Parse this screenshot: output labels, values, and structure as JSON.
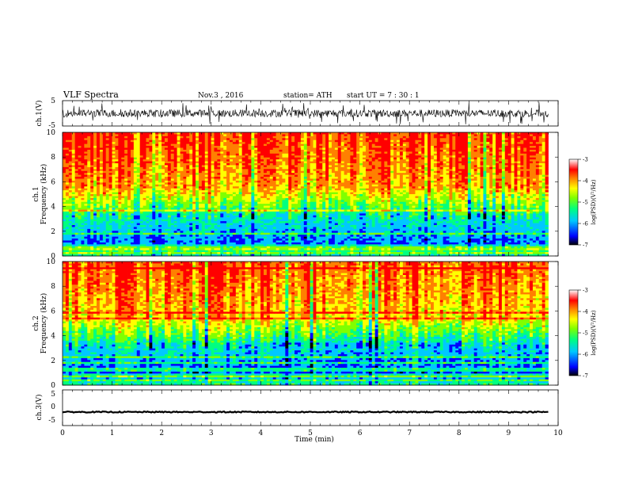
{
  "header": {
    "title": "VLF Spectra",
    "date": "Nov.3 , 2016",
    "station": "station= ATH",
    "start": "start UT = 7 : 30 : 1"
  },
  "colors": {
    "colormap": [
      "#000000",
      "#0000ff",
      "#00c8ff",
      "#00ff80",
      "#80ff00",
      "#ffff00",
      "#ff8000",
      "#ff0000",
      "#ffffff"
    ],
    "waveform": "#000000"
  },
  "chart_data": [
    {
      "type": "line",
      "panel": "ch1-waveform",
      "ylabel": "ch.1(V)",
      "ylim": [
        -5,
        5
      ],
      "yticks": [
        "5",
        "-5"
      ],
      "description_values": {
        "mean": 0,
        "amplitude_typical": 1.5,
        "amplitude_peak": 4.5
      }
    },
    {
      "type": "heatmap",
      "panel": "ch1-spectrogram",
      "ylabel_line1": "ch.1",
      "ylabel_line2": "Frequency (kHz)",
      "ylim": [
        0,
        10
      ],
      "yticks": [
        "0",
        "2",
        "4",
        "6",
        "8",
        "10"
      ],
      "colorbar": {
        "label": "log(PSD)(V²/Hz)",
        "range": [
          -7,
          -3
        ],
        "ticks": [
          "-3",
          "-4",
          "-5",
          "-6",
          "-7"
        ]
      }
    },
    {
      "type": "heatmap",
      "panel": "ch2-spectrogram",
      "ylabel_line1": "ch.2",
      "ylabel_line2": "Frequency (kHz)",
      "ylim": [
        0,
        10
      ],
      "yticks": [
        "0",
        "2",
        "4",
        "6",
        "8",
        "10"
      ],
      "colorbar": {
        "label": "log(PSD)(V²/Hz)",
        "range": [
          -7,
          -3
        ],
        "ticks": [
          "-3",
          "-4",
          "-5",
          "-6",
          "-7"
        ]
      }
    },
    {
      "type": "line",
      "panel": "ch3-waveform",
      "ylabel": "ch.3(V)",
      "ylim": [
        -5,
        5
      ],
      "yticks": [
        "5",
        "0",
        "-5"
      ],
      "description_values": {
        "mean": -1.2,
        "amplitude_typical": 0.3
      }
    }
  ],
  "xaxis": {
    "label": "Time (min)",
    "range": [
      0,
      10
    ],
    "data_end": 9.8,
    "ticks": [
      "0",
      "1",
      "2",
      "3",
      "4",
      "5",
      "6",
      "7",
      "8",
      "9",
      "10"
    ]
  }
}
